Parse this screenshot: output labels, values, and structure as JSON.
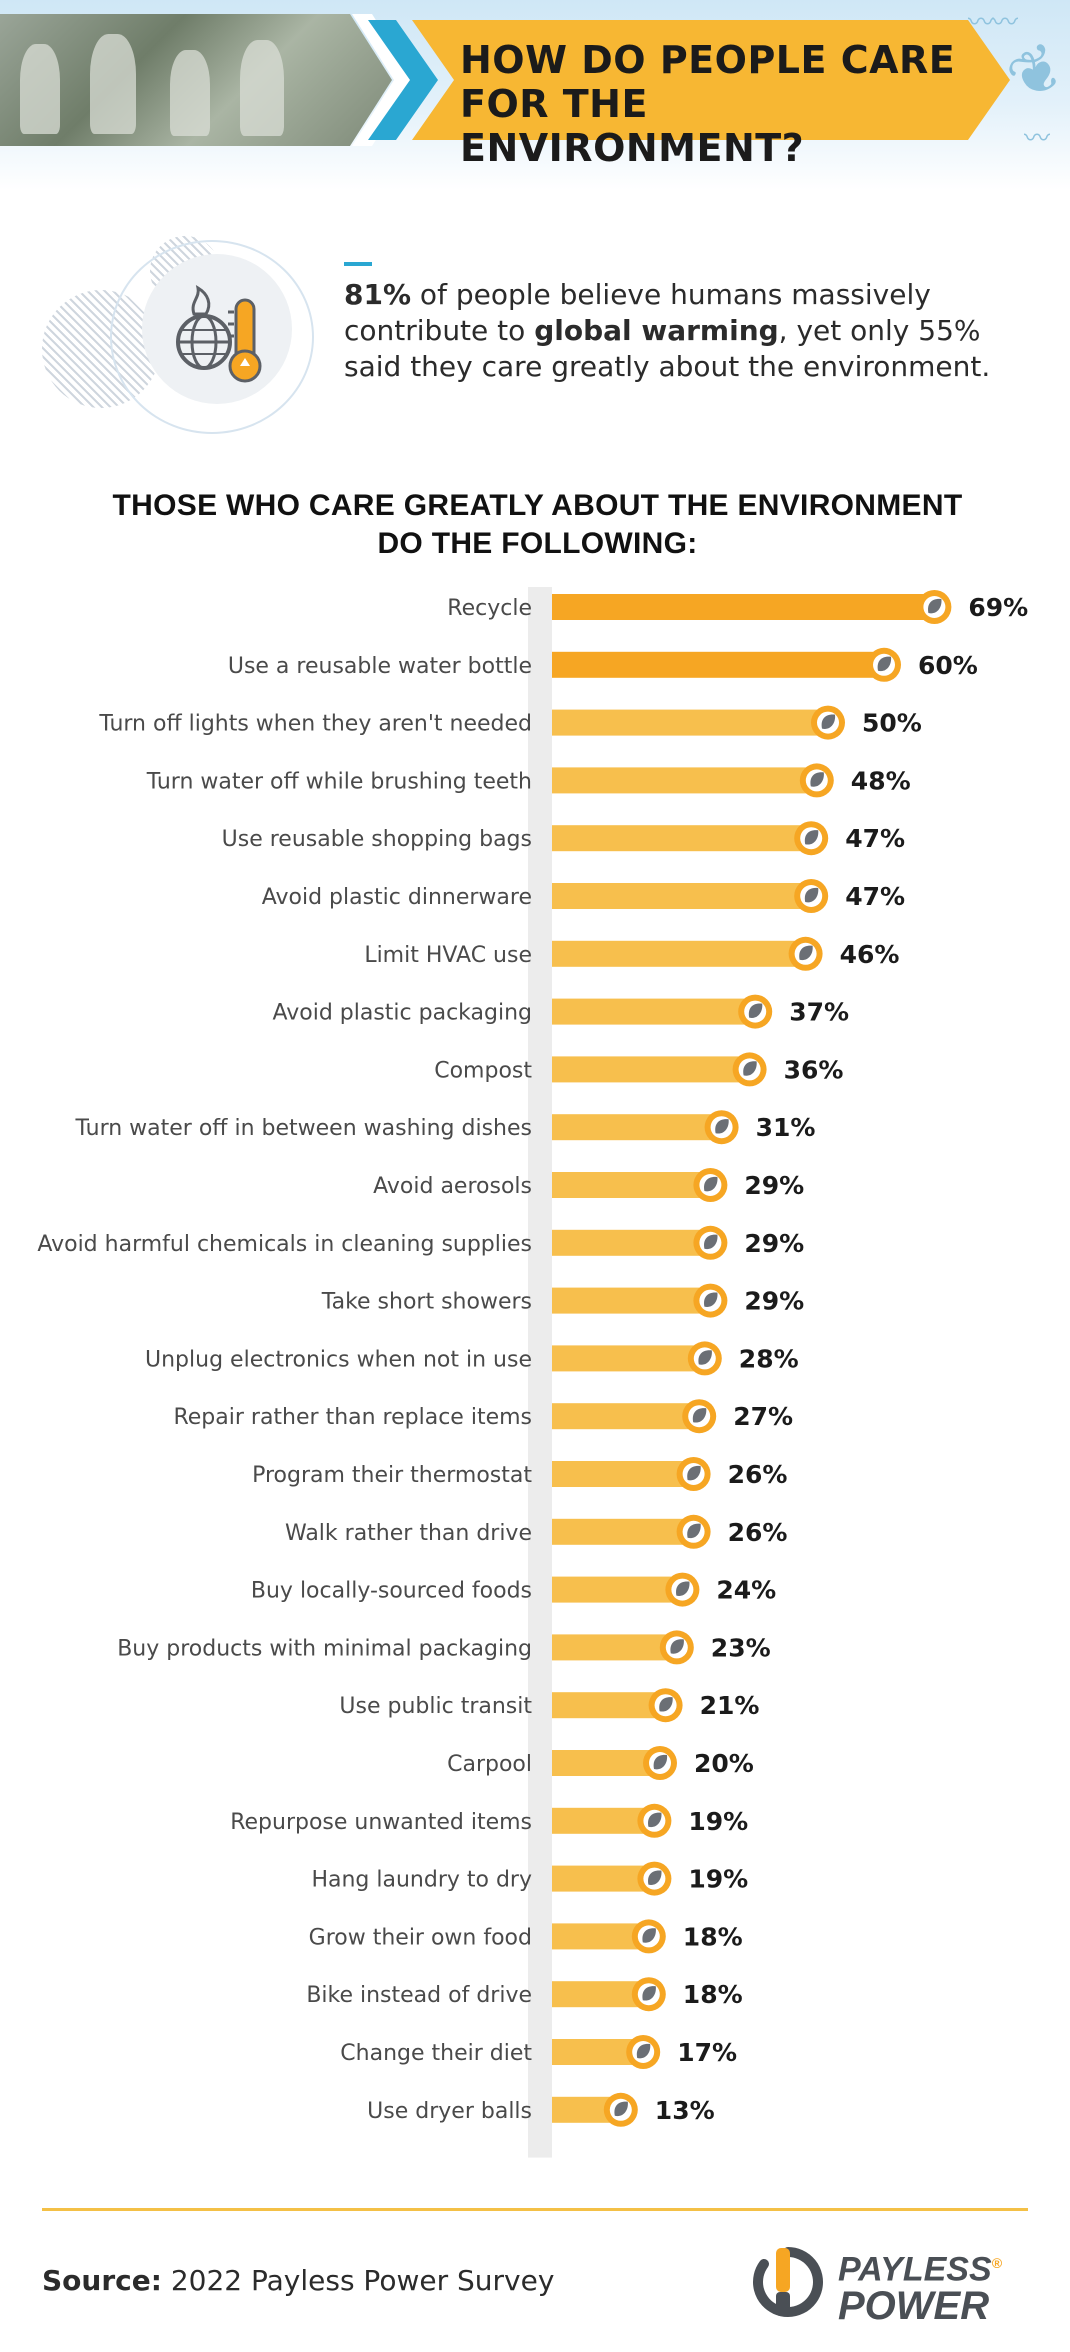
{
  "header": {
    "title_line1": "HOW DO PEOPLE CARE",
    "title_line2": "FOR THE ENVIRONMENT?"
  },
  "intro": {
    "stat": "81%",
    "text_a": " of people believe humans massively contribute to ",
    "highlight": "global warming",
    "text_b": ", yet only 55% said they care greatly about the environment."
  },
  "chart_data": {
    "type": "bar",
    "orientation": "horizontal",
    "title_line1": "THOSE WHO CARE GREATLY ABOUT THE ENVIRONMENT",
    "title_line2": "DO THE FOLLOWING:",
    "categories": [
      "Recycle",
      "Use a reusable water bottle",
      "Turn off lights when they aren't needed",
      "Turn water off while brushing teeth",
      "Use reusable shopping bags",
      "Avoid plastic dinnerware",
      "Limit HVAC use",
      "Avoid plastic packaging",
      "Compost",
      "Turn water off in between washing dishes",
      "Avoid aerosols",
      "Avoid harmful chemicals in cleaning supplies",
      "Take short showers",
      "Unplug electronics when not in use",
      "Repair rather than replace items",
      "Program their thermostat",
      "Walk rather than drive",
      "Buy locally-sourced foods",
      "Buy products with minimal packaging",
      "Use public transit",
      "Carpool",
      "Repurpose unwanted items",
      "Hang laundry to dry",
      "Grow their own food",
      "Bike instead of drive",
      "Change their diet",
      "Use dryer balls"
    ],
    "values": [
      69,
      60,
      50,
      48,
      47,
      47,
      46,
      37,
      36,
      31,
      29,
      29,
      29,
      28,
      27,
      26,
      26,
      24,
      23,
      21,
      20,
      19,
      19,
      18,
      18,
      17,
      13
    ],
    "value_labels": [
      "69%",
      "60%",
      "50%",
      "48%",
      "47%",
      "47%",
      "46%",
      "37%",
      "36%",
      "31%",
      "29%",
      "29%",
      "29%",
      "28%",
      "27%",
      "26%",
      "26%",
      "24%",
      "23%",
      "21%",
      "20%",
      "19%",
      "19%",
      "18%",
      "18%",
      "17%",
      "13%"
    ],
    "unit": "%",
    "highlight_count": 2,
    "colors": {
      "bar_highlight": "#f6a623",
      "bar": "#f7bf4d",
      "marker": "#f6a623",
      "marker_icon": "#6b6f75",
      "shadow": "#ececec",
      "label": "#4a4a4a",
      "value": "#1b1b1b"
    }
  },
  "footer": {
    "source_label": "Source:",
    "source_text": " 2022 Payless Power Survey",
    "logo_line1": "PAYLESS",
    "logo_line2": "POWER",
    "logo_mark": "®"
  },
  "colors": {
    "accent_yellow": "#f7b733",
    "accent_blue": "#2aa7d2",
    "logo_gray": "#4a4f55",
    "logo_orange": "#f6a623"
  },
  "icons": {
    "header_leaf": "leaf-icon",
    "intro": "burning-globe-thermometer-icon",
    "bar_marker": "leaf-badge-icon",
    "logo": "power-p-icon"
  }
}
